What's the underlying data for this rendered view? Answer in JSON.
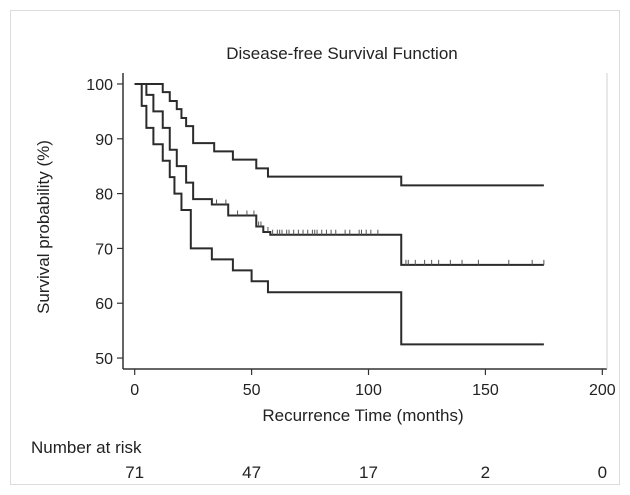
{
  "chart_data": {
    "type": "line",
    "title": "Disease-free Survival Function",
    "xlabel": "Recurrence Time (months)",
    "ylabel": "Survival probability (%)",
    "xlim": [
      -5,
      202
    ],
    "ylim": [
      48,
      102
    ],
    "x_ticks": [
      0,
      50,
      100,
      150,
      200
    ],
    "y_ticks": [
      50,
      60,
      70,
      80,
      90,
      100
    ],
    "grid": false,
    "series": [
      {
        "step_x": [
          0,
          12,
          15,
          18,
          20,
          22,
          25,
          34,
          42,
          52,
          57,
          114,
          175
        ],
        "step_y": [
          100,
          98.5,
          96.9,
          95.4,
          93.8,
          92.3,
          89.2,
          87.7,
          86.2,
          84.6,
          83.1,
          81.5,
          81.5
        ],
        "censor_x": []
      },
      {
        "step_x": [
          0,
          5,
          8,
          12,
          15,
          18,
          22,
          25,
          33,
          40,
          52,
          55,
          58,
          114,
          175
        ],
        "step_y": [
          100,
          98,
          95,
          92,
          88,
          85,
          82,
          79,
          78,
          76,
          74,
          73,
          72.5,
          67,
          67
        ],
        "censor_x": [
          35,
          39,
          44,
          48,
          51,
          53,
          54,
          57,
          59,
          61,
          62,
          63,
          65,
          66,
          68,
          70,
          72,
          74,
          76,
          77,
          78,
          80,
          82,
          84,
          86,
          90,
          92,
          96,
          97,
          99,
          101,
          104,
          116,
          117,
          120,
          124,
          127,
          130,
          135,
          140,
          147,
          160,
          170,
          175
        ]
      },
      {
        "step_x": [
          0,
          3,
          5,
          8,
          12,
          15,
          17,
          20,
          24,
          33,
          42,
          50,
          57,
          114,
          175
        ],
        "step_y": [
          100,
          96,
          92,
          89,
          86,
          83,
          80,
          77,
          70,
          68,
          66,
          64,
          62,
          52.5,
          52.5
        ],
        "censor_x": []
      }
    ],
    "risk_table": {
      "label": "Number at risk",
      "times": [
        0,
        50,
        100,
        150,
        200
      ],
      "counts": [
        "71",
        "47",
        "17",
        "2",
        "0"
      ]
    }
  }
}
